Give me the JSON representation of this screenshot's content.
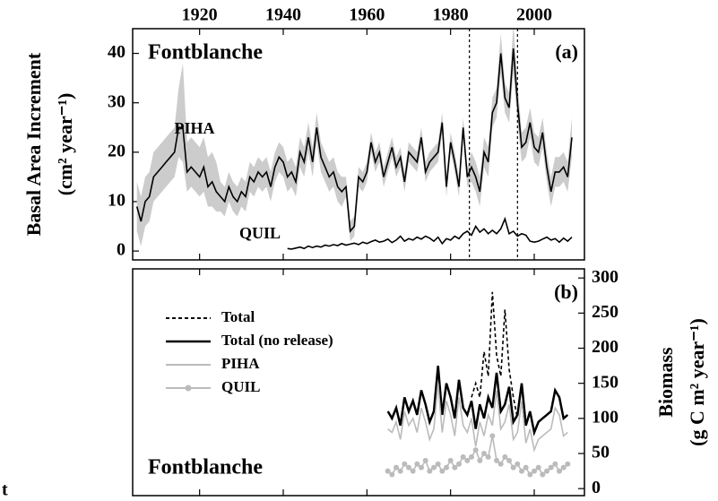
{
  "chart_data": [
    {
      "type": "line",
      "ylabel": "Basal Area Increment",
      "ylabel_unit": "(cm² year⁻¹)",
      "annotations": [
        "Fontblanche",
        "(a)",
        "PIHA",
        "QUIL"
      ],
      "xlim": [
        1904,
        2012
      ],
      "xticks": [
        1920,
        1940,
        1960,
        1980,
        2000
      ],
      "ylim": [
        -1.8,
        45
      ],
      "yticks": [
        0,
        10,
        20,
        30,
        40
      ],
      "vlines": [
        1984.5,
        1996
      ],
      "series": [
        {
          "name": "PIHA",
          "color": "#000000",
          "band_color": "#cccccc",
          "x": [
            1905,
            1906,
            1907,
            1908,
            1909,
            1910,
            1911,
            1912,
            1913,
            1914,
            1915,
            1916,
            1917,
            1918,
            1919,
            1920,
            1921,
            1922,
            1923,
            1924,
            1925,
            1926,
            1927,
            1928,
            1929,
            1930,
            1931,
            1932,
            1933,
            1934,
            1935,
            1936,
            1937,
            1938,
            1939,
            1940,
            1941,
            1942,
            1943,
            1944,
            1945,
            1946,
            1947,
            1948,
            1949,
            1950,
            1951,
            1952,
            1953,
            1954,
            1955,
            1956,
            1957,
            1958,
            1959,
            1960,
            1961,
            1962,
            1963,
            1964,
            1965,
            1966,
            1967,
            1968,
            1969,
            1970,
            1971,
            1972,
            1973,
            1974,
            1975,
            1976,
            1977,
            1978,
            1979,
            1980,
            1981,
            1982,
            1983,
            1984,
            1985,
            1986,
            1987,
            1988,
            1989,
            1990,
            1991,
            1992,
            1993,
            1994,
            1995,
            1996,
            1997,
            1998,
            1999,
            2000,
            2001,
            2002,
            2003,
            2004,
            2005,
            2006,
            2007,
            2008,
            2009
          ],
          "values": [
            9,
            6,
            10,
            11,
            15,
            16,
            17,
            18,
            19,
            20,
            25,
            25,
            16,
            17,
            16,
            15,
            17,
            13,
            14,
            12,
            11,
            10,
            13,
            11,
            10,
            12,
            11,
            15,
            14,
            16,
            15,
            16,
            13,
            17,
            19,
            18,
            15,
            16,
            14,
            20,
            18,
            23,
            18,
            25,
            19,
            17,
            15,
            16,
            13,
            12,
            13,
            4,
            5,
            15,
            14,
            16,
            22,
            18,
            20,
            15,
            18,
            21,
            17,
            19,
            14,
            20,
            19,
            18,
            23,
            16,
            18,
            19,
            20,
            26,
            13,
            22,
            18,
            13,
            25,
            15,
            17,
            15,
            12,
            20,
            18,
            28,
            30,
            40,
            31,
            29,
            41,
            30,
            21,
            22,
            26,
            21,
            20,
            24,
            17,
            12,
            16,
            16,
            17,
            15,
            23
          ],
          "upper": [
            14,
            11,
            15,
            16,
            20,
            21,
            22,
            23,
            24,
            25,
            33,
            38,
            22,
            23,
            22,
            21,
            23,
            19,
            20,
            18,
            14,
            13,
            16,
            14,
            13,
            15,
            14,
            18,
            17,
            19,
            18,
            19,
            16,
            20,
            22,
            21,
            18,
            19,
            17,
            23,
            21,
            26,
            21,
            28,
            22,
            20,
            18,
            19,
            16,
            15,
            15,
            6,
            7,
            17,
            16,
            18,
            24,
            20,
            22,
            17,
            20,
            23,
            19,
            21,
            16,
            22,
            21,
            20,
            25,
            18,
            20,
            21,
            22,
            28,
            15,
            24,
            20,
            15,
            27,
            17,
            20,
            18,
            15,
            23,
            21,
            31,
            33,
            44,
            34,
            32,
            46,
            34,
            24,
            25,
            29,
            24,
            23,
            27,
            20,
            15,
            19,
            19,
            20,
            18,
            27
          ],
          "lower": [
            4,
            1,
            5,
            6,
            10,
            11,
            12,
            13,
            14,
            15,
            19,
            18,
            12,
            13,
            12,
            11,
            12,
            9,
            9,
            8,
            8,
            7,
            10,
            8,
            7,
            9,
            8,
            12,
            11,
            13,
            12,
            13,
            10,
            14,
            16,
            15,
            12,
            13,
            11,
            17,
            15,
            20,
            15,
            22,
            16,
            14,
            12,
            13,
            10,
            9,
            11,
            2,
            3,
            13,
            12,
            14,
            20,
            16,
            18,
            13,
            16,
            19,
            15,
            17,
            12,
            18,
            17,
            16,
            21,
            14,
            16,
            17,
            18,
            24,
            11,
            20,
            16,
            11,
            23,
            13,
            14,
            12,
            9,
            17,
            15,
            25,
            27,
            36,
            28,
            26,
            36,
            26,
            18,
            19,
            23,
            18,
            17,
            21,
            14,
            9,
            13,
            13,
            14,
            12,
            19
          ]
        },
        {
          "name": "QUIL",
          "color": "#000000",
          "x": [
            1941,
            1942,
            1943,
            1944,
            1945,
            1946,
            1947,
            1948,
            1949,
            1950,
            1951,
            1952,
            1953,
            1954,
            1955,
            1956,
            1957,
            1958,
            1959,
            1960,
            1961,
            1962,
            1963,
            1964,
            1965,
            1966,
            1967,
            1968,
            1969,
            1970,
            1971,
            1972,
            1973,
            1974,
            1975,
            1976,
            1977,
            1978,
            1979,
            1980,
            1981,
            1982,
            1983,
            1984,
            1985,
            1986,
            1987,
            1988,
            1989,
            1990,
            1991,
            1992,
            1993,
            1994,
            1995,
            1996,
            1997,
            1998,
            1999,
            2000,
            2001,
            2002,
            2003,
            2004,
            2005,
            2006,
            2007,
            2008,
            2009
          ],
          "values": [
            0.5,
            0.4,
            0.6,
            0.8,
            0.5,
            1.0,
            0.7,
            1.0,
            0.8,
            1.2,
            1.0,
            1.3,
            1.1,
            1.5,
            1.2,
            1.4,
            1.6,
            1.3,
            1.8,
            1.5,
            1.9,
            2.2,
            1.8,
            2.0,
            2.4,
            1.7,
            2.2,
            3.0,
            2.0,
            2.5,
            2.2,
            2.8,
            2.4,
            3.0,
            2.6,
            2.0,
            2.8,
            1.5,
            2.5,
            2.2,
            3.0,
            2.5,
            3.5,
            4.0,
            3.2,
            5.0,
            3.8,
            4.5,
            3.5,
            4.2,
            3.5,
            4.5,
            6.5,
            3.5,
            4.0,
            3.0,
            3.5,
            3.2,
            2.0,
            1.8,
            2.0,
            2.4,
            2.8,
            2.2,
            2.5,
            1.8,
            2.6,
            2.0,
            2.8
          ]
        }
      ]
    },
    {
      "type": "line",
      "ylabel": "Biomass",
      "ylabel_unit": "(g C m² year⁻¹)",
      "annotations": [
        "Fontblanche",
        "(b)",
        "t"
      ],
      "legend": "upper left",
      "xlim": [
        1904,
        2012
      ],
      "xticks": [
        1920,
        1940,
        1960,
        1980,
        2000
      ],
      "ylim": [
        -10,
        313
      ],
      "yticks": [
        0,
        50,
        100,
        150,
        200,
        250,
        300
      ],
      "x": [
        1965,
        1966,
        1967,
        1968,
        1969,
        1970,
        1971,
        1972,
        1973,
        1974,
        1975,
        1976,
        1977,
        1978,
        1979,
        1980,
        1981,
        1982,
        1983,
        1984,
        1985,
        1986,
        1987,
        1988,
        1989,
        1990,
        1991,
        1992,
        1993,
        1994,
        1995,
        1996,
        1997,
        1998,
        1999,
        2000,
        2001,
        2002,
        2003,
        2004,
        2005,
        2006,
        2007,
        2008
      ],
      "series": [
        {
          "name": "Total",
          "color": "#000000",
          "dashed": true,
          "values": [
            null,
            null,
            null,
            null,
            null,
            null,
            null,
            null,
            null,
            null,
            null,
            null,
            null,
            null,
            null,
            null,
            null,
            null,
            null,
            null,
            130,
            150,
            130,
            195,
            160,
            280,
            190,
            160,
            255,
            170,
            130,
            100,
            null,
            null,
            null,
            null,
            null,
            null,
            null,
            null,
            null,
            null,
            null,
            null
          ]
        },
        {
          "name": "Total (no release)",
          "color": "#000000",
          "values": [
            110,
            100,
            115,
            90,
            130,
            110,
            125,
            105,
            140,
            120,
            95,
            110,
            175,
            105,
            150,
            130,
            100,
            155,
            115,
            105,
            125,
            85,
            120,
            100,
            130,
            115,
            165,
            110,
            120,
            145,
            95,
            105,
            150,
            90,
            110,
            80,
            95,
            100,
            105,
            110,
            140,
            130,
            100,
            105
          ]
        },
        {
          "name": "PIHA",
          "color": "#bbbbbb",
          "values": [
            85,
            80,
            95,
            70,
            110,
            90,
            100,
            80,
            115,
            95,
            70,
            85,
            150,
            80,
            125,
            105,
            75,
            130,
            90,
            80,
            100,
            60,
            95,
            75,
            105,
            90,
            140,
            85,
            95,
            120,
            70,
            80,
            125,
            65,
            85,
            55,
            70,
            75,
            80,
            85,
            115,
            105,
            75,
            80
          ]
        },
        {
          "name": "QUIL",
          "color": "#bbbbbb",
          "markers": true,
          "values": [
            25,
            20,
            30,
            25,
            35,
            30,
            25,
            35,
            30,
            40,
            25,
            30,
            35,
            25,
            30,
            40,
            30,
            35,
            45,
            40,
            45,
            55,
            40,
            50,
            45,
            75,
            40,
            35,
            45,
            40,
            30,
            35,
            25,
            30,
            20,
            25,
            30,
            20,
            25,
            30,
            35,
            25,
            30,
            35
          ]
        }
      ]
    }
  ]
}
